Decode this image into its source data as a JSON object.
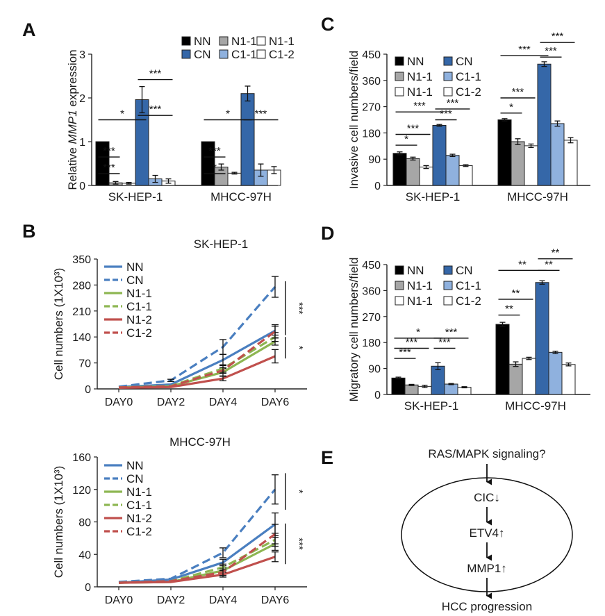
{
  "colors": {
    "NN": "#000000",
    "N1-1": "#a6a6a6",
    "N1-1b": "#ffffff",
    "CN": "#3567a8",
    "C1-1": "#8fb1de",
    "C1-2": "#ffffff",
    "lineNN": "#4a7fc0",
    "lineN1": "#8db652",
    "lineN12": "#c0504d"
  },
  "bar_legend": [
    "NN",
    "N1-1",
    "N1-1",
    "CN",
    "C1-1",
    "C1-2"
  ],
  "line_legend": [
    "NN",
    "CN",
    "N1-1",
    "C1-1",
    "N1-2",
    "C1-2"
  ],
  "chart_data": [
    {
      "panel": "A",
      "type": "bar",
      "ylabel_pre": "Relative ",
      "ylabel_ital": "MMP1",
      "ylabel_post": " expression",
      "ylim": [
        0,
        3
      ],
      "yticks": [
        "0",
        "1",
        "2",
        "3"
      ],
      "categories": [
        "SK-HEP-1",
        "MHCC-97H"
      ],
      "series": [
        {
          "name": "NN",
          "values": [
            1.0,
            1.0
          ],
          "err": [
            0,
            0
          ]
        },
        {
          "name": "N1-1",
          "values": [
            0.06,
            0.42
          ],
          "err": [
            0.03,
            0.07
          ]
        },
        {
          "name": "N1-1",
          "values": [
            0.05,
            0.28
          ],
          "err": [
            0.02,
            0.02
          ]
        },
        {
          "name": "CN",
          "values": [
            1.96,
            2.1
          ],
          "err": [
            0.3,
            0.17
          ]
        },
        {
          "name": "C1-1",
          "values": [
            0.15,
            0.35
          ],
          "err": [
            0.08,
            0.14
          ]
        },
        {
          "name": "C1-2",
          "values": [
            0.1,
            0.35
          ],
          "err": [
            0.05,
            0.08
          ]
        }
      ],
      "sig": [
        {
          "g": 0,
          "a": 0,
          "b": 3,
          "v": 1.5,
          "label": "*"
        },
        {
          "g": 0,
          "a": 0,
          "b": 1,
          "v": 0.65,
          "label": "***"
        },
        {
          "g": 0,
          "a": 0,
          "b": 1,
          "v": 0.27,
          "label": "***"
        },
        {
          "g": 0,
          "a": 3,
          "b": 5,
          "v": 2.42,
          "label": "***"
        },
        {
          "g": 0,
          "a": 3,
          "b": 5,
          "v": 1.6,
          "label": "***"
        },
        {
          "g": 1,
          "a": 0,
          "b": 3,
          "v": 1.5,
          "label": "*"
        },
        {
          "g": 1,
          "a": 0,
          "b": 1,
          "v": 0.65,
          "label": "***"
        },
        {
          "g": 1,
          "a": 0,
          "b": 1,
          "v": 0.27,
          "label": "*"
        },
        {
          "g": 1,
          "a": 3,
          "b": 5,
          "v": 1.5,
          "label": "***"
        }
      ]
    },
    {
      "panel": "C",
      "type": "bar",
      "ylabel": "Invasive cell numbers/field",
      "ylim": [
        0,
        450
      ],
      "yticks": [
        "0",
        "90",
        "180",
        "270",
        "360",
        "450"
      ],
      "categories": [
        "SK-HEP-1",
        "MHCC-97H"
      ],
      "series": [
        {
          "name": "NN",
          "values": [
            110,
            225
          ],
          "err": [
            5,
            4
          ]
        },
        {
          "name": "N1-1",
          "values": [
            92,
            150
          ],
          "err": [
            5,
            10
          ]
        },
        {
          "name": "N1-1",
          "values": [
            63,
            136
          ],
          "err": [
            5,
            6
          ]
        },
        {
          "name": "CN",
          "values": [
            206,
            416
          ],
          "err": [
            3,
            8
          ]
        },
        {
          "name": "C1-1",
          "values": [
            103,
            212
          ],
          "err": [
            4,
            9
          ]
        },
        {
          "name": "C1-2",
          "values": [
            68,
            155
          ],
          "err": [
            3,
            9
          ]
        }
      ],
      "sig": [
        {
          "g": 0,
          "a": 0,
          "b": 3,
          "v": 252,
          "label": "***"
        },
        {
          "g": 0,
          "a": 0,
          "b": 2,
          "v": 175,
          "label": "***"
        },
        {
          "g": 0,
          "a": 0,
          "b": 1,
          "v": 138,
          "label": "*"
        },
        {
          "g": 0,
          "a": 3,
          "b": 5,
          "v": 262,
          "label": "***"
        },
        {
          "g": 0,
          "a": 3,
          "b": 4,
          "v": 225,
          "label": "***"
        },
        {
          "g": 1,
          "a": 0,
          "b": 3,
          "v": 445,
          "label": "***"
        },
        {
          "g": 1,
          "a": 0,
          "b": 2,
          "v": 300,
          "label": "***"
        },
        {
          "g": 1,
          "a": 0,
          "b": 1,
          "v": 248,
          "label": "*"
        },
        {
          "g": 1,
          "a": 3,
          "b": 5,
          "v": 490,
          "label": "***"
        },
        {
          "g": 1,
          "a": 3,
          "b": 4,
          "v": 440,
          "label": "***"
        }
      ]
    },
    {
      "panel": "D",
      "type": "bar",
      "ylabel": "Migratory cell numbers/field",
      "ylim": [
        0,
        450
      ],
      "yticks": [
        "0",
        "90",
        "180",
        "270",
        "360",
        "450"
      ],
      "categories": [
        "SK-HEP-1",
        "MHCC-97H"
      ],
      "series": [
        {
          "name": "NN",
          "values": [
            57,
            243
          ],
          "err": [
            3,
            7
          ]
        },
        {
          "name": "N1-1",
          "values": [
            33,
            105
          ],
          "err": [
            2,
            8
          ]
        },
        {
          "name": "N1-1",
          "values": [
            28,
            125
          ],
          "err": [
            4,
            4
          ]
        },
        {
          "name": "CN",
          "values": [
            98,
            388
          ],
          "err": [
            12,
            6
          ]
        },
        {
          "name": "C1-1",
          "values": [
            36,
            146
          ],
          "err": [
            2,
            4
          ]
        },
        {
          "name": "C1-2",
          "values": [
            25,
            104
          ],
          "err": [
            2,
            5
          ]
        }
      ],
      "sig": [
        {
          "g": 0,
          "a": 0,
          "b": 3,
          "v": 195,
          "label": "*"
        },
        {
          "g": 0,
          "a": 0,
          "b": 2,
          "v": 160,
          "label": "***"
        },
        {
          "g": 0,
          "a": 0,
          "b": 1,
          "v": 125,
          "label": "***"
        },
        {
          "g": 0,
          "a": 3,
          "b": 5,
          "v": 195,
          "label": "***"
        },
        {
          "g": 0,
          "a": 3,
          "b": 4,
          "v": 160,
          "label": "***"
        },
        {
          "g": 1,
          "a": 0,
          "b": 3,
          "v": 430,
          "label": "**"
        },
        {
          "g": 1,
          "a": 0,
          "b": 2,
          "v": 330,
          "label": "**"
        },
        {
          "g": 1,
          "a": 0,
          "b": 1,
          "v": 275,
          "label": "**"
        },
        {
          "g": 1,
          "a": 3,
          "b": 5,
          "v": 470,
          "label": "**"
        },
        {
          "g": 1,
          "a": 3,
          "b": 4,
          "v": 430,
          "label": "**"
        }
      ]
    },
    {
      "panel": "B",
      "type": "line",
      "title": "SK-HEP-1",
      "ylabel": "Cell numbers (1X10³)",
      "categories": [
        "DAY0",
        "DAY2",
        "DAY4",
        "DAY6"
      ],
      "ylim": [
        0,
        350
      ],
      "yticks": [
        "0",
        "70",
        "140",
        "210",
        "280",
        "350"
      ],
      "series": [
        {
          "name": "NN",
          "values": [
            5,
            12,
            78,
            157
          ],
          "err": [
            1,
            2,
            15,
            12
          ]
        },
        {
          "name": "CN",
          "values": [
            6,
            23,
            113,
            275
          ],
          "err": [
            1,
            3,
            20,
            28
          ]
        },
        {
          "name": "N1-1",
          "values": [
            4,
            7,
            45,
            128
          ],
          "err": [
            1,
            1,
            10,
            10
          ]
        },
        {
          "name": "C1-1",
          "values": [
            4,
            8,
            55,
            140
          ],
          "err": [
            1,
            1,
            10,
            12
          ]
        },
        {
          "name": "N1-2",
          "values": [
            3,
            5,
            28,
            88
          ],
          "err": [
            1,
            1,
            6,
            18
          ]
        },
        {
          "name": "C1-2",
          "values": [
            4,
            7,
            50,
            155
          ],
          "err": [
            1,
            1,
            8,
            18
          ]
        }
      ],
      "sig": [
        "***",
        "*"
      ]
    },
    {
      "panel": "B2",
      "type": "line",
      "title": "MHCC-97H",
      "ylabel": "Cell numbers (1X10³)",
      "categories": [
        "DAY0",
        "DAY2",
        "DAY4",
        "DAY6"
      ],
      "ylim": [
        0,
        160
      ],
      "yticks": [
        "0",
        "40",
        "80",
        "120",
        "160"
      ],
      "series": [
        {
          "name": "NN",
          "values": [
            5,
            9,
            30,
            77
          ],
          "err": [
            1,
            1,
            4,
            14
          ]
        },
        {
          "name": "CN",
          "values": [
            6,
            10,
            42,
            120
          ],
          "err": [
            1,
            1,
            6,
            18
          ]
        },
        {
          "name": "N1-1",
          "values": [
            5,
            6,
            20,
            53
          ],
          "err": [
            1,
            1,
            4,
            8
          ]
        },
        {
          "name": "C1-1",
          "values": [
            5,
            7,
            24,
            58
          ],
          "err": [
            1,
            1,
            4,
            8
          ]
        },
        {
          "name": "N1-2",
          "values": [
            5,
            6,
            15,
            37
          ],
          "err": [
            1,
            1,
            3,
            6
          ]
        },
        {
          "name": "C1-2",
          "values": [
            5,
            7,
            18,
            65
          ],
          "err": [
            1,
            1,
            4,
            12
          ]
        }
      ],
      "sig": [
        "*",
        "***"
      ]
    }
  ],
  "panelE": {
    "top": "RAS/MAPK signaling?",
    "steps": [
      "CIC↓",
      "ETV4↑",
      "MMP1↑"
    ],
    "bottom": "HCC progression"
  }
}
